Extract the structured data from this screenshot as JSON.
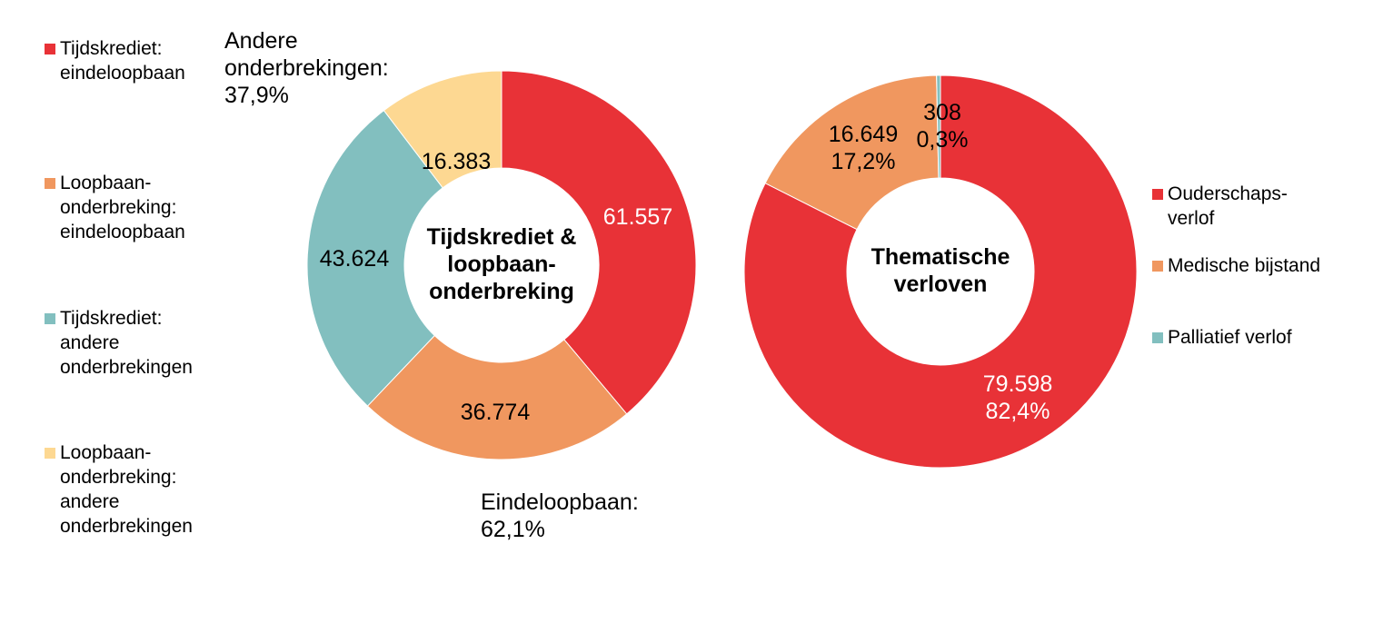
{
  "chart_data": [
    {
      "type": "pie",
      "donut": true,
      "title": "Tijdskrediet & loopbaan-onderbreking",
      "title_lines": [
        "Tijdskrediet &",
        "loopbaan-",
        "onderbreking"
      ],
      "categories": [
        "Tijdskrediet: eindeloopbaan",
        "Loopbaan-onderbreking: eindeloopbaan",
        "Tijdskrediet: andere onderbrekingen",
        "Loopbaan-onderbreking: andere onderbrekingen"
      ],
      "legend_lines": [
        [
          "Tijdskrediet:",
          "eindeloopbaan"
        ],
        [
          "Loopbaan-",
          "onderbreking:",
          "eindeloopbaan"
        ],
        [
          "Tijdskrediet:",
          "andere",
          "onderbrekingen"
        ],
        [
          "Loopbaan-",
          "onderbreking:",
          "andere",
          "onderbrekingen"
        ]
      ],
      "values": [
        61557,
        36774,
        43624,
        16383
      ],
      "data_labels": [
        "61.557",
        "36.774",
        "43.624",
        "16.383"
      ],
      "colors": [
        "#E83237",
        "#F0975F",
        "#82BFBF",
        "#FDD892"
      ],
      "legend_position": "left",
      "annotations": {
        "andere": [
          "Andere",
          "onderbrekingen:",
          "37,9%"
        ],
        "eindeloopbaan": [
          "Eindeloopbaan:",
          "62,1%"
        ]
      }
    },
    {
      "type": "pie",
      "donut": true,
      "title": "Thematische verloven",
      "title_lines": [
        "Thematische",
        "verloven"
      ],
      "categories": [
        "Ouderschapsverlof",
        "Medische bijstand",
        "Palliatief verlof"
      ],
      "legend_lines": [
        [
          "Ouderschaps-",
          "verlof"
        ],
        [
          "Medische bijstand"
        ],
        [
          "Palliatief verlof"
        ]
      ],
      "values": [
        79598,
        16649,
        308
      ],
      "data_labels": [
        [
          "79.598",
          "82,4%"
        ],
        [
          "16.649",
          "17,2%"
        ],
        [
          "308",
          "0,3%"
        ]
      ],
      "colors": [
        "#E83237",
        "#F0975F",
        "#82BFBF"
      ],
      "legend_position": "right"
    }
  ]
}
